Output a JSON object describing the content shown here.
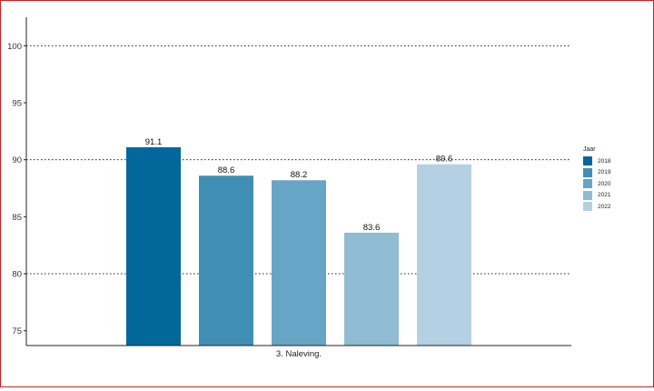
{
  "chart_data": {
    "type": "bar",
    "category": "3. Naleving.",
    "series": [
      {
        "name": "2018",
        "value": 91.1,
        "label": "91.1",
        "color": "#02679a"
      },
      {
        "name": "2019",
        "value": 88.6,
        "label": "88.6",
        "color": "#3f8fb4"
      },
      {
        "name": "2020",
        "value": 88.2,
        "label": "88.2",
        "color": "#66a5c5"
      },
      {
        "name": "2021",
        "value": 83.6,
        "label": "83.6",
        "color": "#8fbbd3"
      },
      {
        "name": "2022",
        "value": 89.6,
        "label": "89.6",
        "color": "#b3d1e2"
      }
    ],
    "yticks": [
      75,
      80,
      85,
      90,
      95,
      100
    ],
    "ytick_labels": [
      "75",
      "80",
      "85",
      "90",
      "95",
      "100"
    ],
    "ylim": [
      73.7,
      102.5
    ],
    "gridlines_at": [
      80,
      90,
      100
    ],
    "grid": "dotted horizontal",
    "legend": {
      "title": "Jaar",
      "position": "right"
    },
    "xlabel": "",
    "ylabel": ""
  }
}
